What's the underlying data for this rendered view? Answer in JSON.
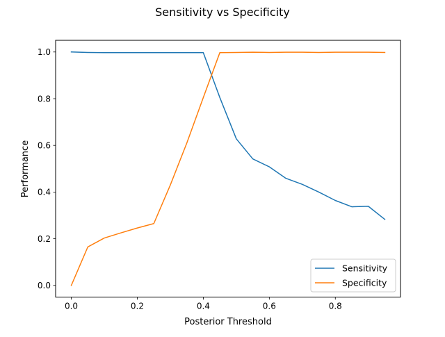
{
  "chart_data": {
    "type": "line",
    "title": "Sensitivity vs Specificity",
    "xlabel": "Posterior Threshold",
    "ylabel": "Performance",
    "xlim": [
      -0.0475,
      0.9975
    ],
    "ylim": [
      -0.05,
      1.05
    ],
    "xticks": [
      {
        "value": 0.0,
        "label": "0.0"
      },
      {
        "value": 0.2,
        "label": "0.2"
      },
      {
        "value": 0.4,
        "label": "0.4"
      },
      {
        "value": 0.6,
        "label": "0.6"
      },
      {
        "value": 0.8,
        "label": "0.8"
      }
    ],
    "yticks": [
      {
        "value": 0.0,
        "label": "0.0"
      },
      {
        "value": 0.2,
        "label": "0.2"
      },
      {
        "value": 0.4,
        "label": "0.4"
      },
      {
        "value": 0.6,
        "label": "0.6"
      },
      {
        "value": 0.8,
        "label": "0.8"
      },
      {
        "value": 1.0,
        "label": "1.0"
      }
    ],
    "grid": false,
    "legend_position": "lower-right",
    "x": [
      0.0,
      0.05,
      0.1,
      0.15,
      0.2,
      0.25,
      0.3,
      0.35,
      0.4,
      0.45,
      0.5,
      0.55,
      0.6,
      0.65,
      0.7,
      0.75,
      0.8,
      0.85,
      0.9,
      0.95
    ],
    "series": [
      {
        "name": "Sensitivity",
        "color": "#1f77b4",
        "values": [
          1.0,
          0.998,
          0.997,
          0.997,
          0.997,
          0.997,
          0.997,
          0.997,
          0.997,
          0.805,
          0.628,
          0.542,
          0.508,
          0.459,
          0.433,
          0.4,
          0.364,
          0.337,
          0.339,
          0.283
        ]
      },
      {
        "name": "Specificity",
        "color": "#ff7f0e",
        "values": [
          0.0,
          0.165,
          0.203,
          0.225,
          0.246,
          0.265,
          0.43,
          0.61,
          0.805,
          0.997,
          0.998,
          0.999,
          0.998,
          0.999,
          0.999,
          0.998,
          0.999,
          0.999,
          0.999,
          0.998
        ]
      }
    ]
  }
}
